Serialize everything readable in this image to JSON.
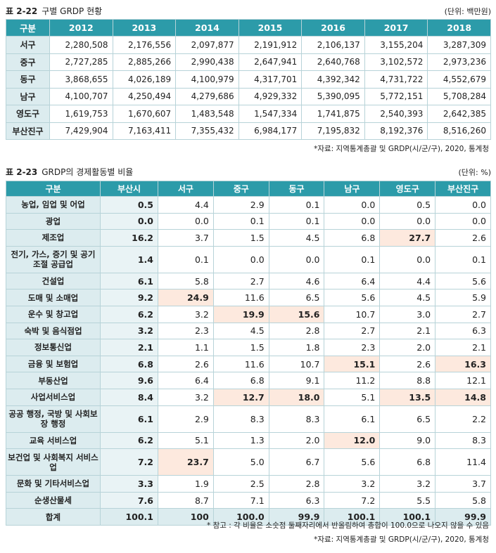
{
  "table1": {
    "number": "표 2-22",
    "title": "구별 GRDP 현황",
    "unit": "(단위: 백만원)",
    "headers": [
      "구분",
      "2012",
      "2013",
      "2014",
      "2015",
      "2016",
      "2017",
      "2018"
    ],
    "rows": [
      [
        "서구",
        "2,280,508",
        "2,176,556",
        "2,097,877",
        "2,191,912",
        "2,106,137",
        "3,155,204",
        "3,287,309"
      ],
      [
        "중구",
        "2,727,285",
        "2,885,266",
        "2,990,438",
        "2,647,941",
        "2,640,768",
        "3,102,572",
        "2,973,236"
      ],
      [
        "동구",
        "3,868,655",
        "4,026,189",
        "4,100,979",
        "4,317,701",
        "4,392,342",
        "4,731,722",
        "4,552,679"
      ],
      [
        "남구",
        "4,100,707",
        "4,250,494",
        "4,279,686",
        "4,929,332",
        "5,390,095",
        "5,772,151",
        "5,708,284"
      ],
      [
        "영도구",
        "1,619,753",
        "1,670,607",
        "1,483,548",
        "1,547,334",
        "1,741,875",
        "2,540,393",
        "2,642,385"
      ],
      [
        "부산진구",
        "7,429,904",
        "7,163,411",
        "7,355,432",
        "6,984,177",
        "7,195,832",
        "8,192,376",
        "8,516,260"
      ]
    ],
    "source": "*자료: 지역통계총괄 및 GRDP(시/군/구), 2020, 통계청"
  },
  "table2": {
    "number": "표 2-23",
    "title": "GRDP의 경제활동별 비율",
    "unit": "(단위: %)",
    "headers": [
      "구분",
      "부산시",
      "서구",
      "중구",
      "동구",
      "남구",
      "영도구",
      "부산진구"
    ],
    "rows": [
      [
        "농업, 임업 및 어업",
        "0.5",
        "4.4",
        "2.9",
        "0.1",
        "0.0",
        "0.5",
        "0.0"
      ],
      [
        "광업",
        "0.0",
        "0.0",
        "0.1",
        "0.1",
        "0.0",
        "0.0",
        "0.0"
      ],
      [
        "제조업",
        "16.2",
        "3.7",
        "1.5",
        "4.5",
        "6.8",
        "27.7",
        "2.6"
      ],
      [
        "전기, 가스, 증기 및 공기 조절 공급업",
        "1.4",
        "0.1",
        "0.0",
        "0.0",
        "0.1",
        "0.0",
        "0.1"
      ],
      [
        "건설업",
        "6.1",
        "5.8",
        "2.7",
        "4.6",
        "6.4",
        "4.4",
        "5.6"
      ],
      [
        "도매 및 소매업",
        "9.2",
        "24.9",
        "11.6",
        "6.5",
        "5.6",
        "4.5",
        "5.9"
      ],
      [
        "운수 및 창고업",
        "6.2",
        "3.2",
        "19.9",
        "15.6",
        "10.7",
        "3.0",
        "2.7"
      ],
      [
        "숙박 및 음식점업",
        "3.2",
        "2.3",
        "4.5",
        "2.8",
        "2.7",
        "2.1",
        "6.3"
      ],
      [
        "정보통신업",
        "2.1",
        "1.1",
        "1.5",
        "1.8",
        "2.3",
        "2.0",
        "2.1"
      ],
      [
        "금융 및 보험업",
        "6.8",
        "2.6",
        "11.6",
        "10.7",
        "15.1",
        "2.6",
        "16.3"
      ],
      [
        "부동산업",
        "9.6",
        "6.4",
        "6.8",
        "9.1",
        "11.2",
        "8.8",
        "12.1"
      ],
      [
        "사업서비스업",
        "8.4",
        "3.2",
        "12.7",
        "18.0",
        "5.1",
        "13.5",
        "14.8"
      ],
      [
        "공공 행정, 국방 및 사회보장 행정",
        "6.1",
        "2.9",
        "8.3",
        "8.3",
        "6.1",
        "6.5",
        "2.2"
      ],
      [
        "교육 서비스업",
        "6.2",
        "5.1",
        "1.3",
        "2.0",
        "12.0",
        "9.0",
        "8.3"
      ],
      [
        "보건업 및 사회복지 서비스업",
        "7.2",
        "23.7",
        "5.0",
        "6.7",
        "5.6",
        "6.8",
        "11.4"
      ],
      [
        "문화 및 기타서비스업",
        "3.3",
        "1.9",
        "2.5",
        "2.8",
        "3.2",
        "3.2",
        "3.7"
      ],
      [
        "순생산물세",
        "7.6",
        "8.7",
        "7.1",
        "6.3",
        "7.2",
        "5.5",
        "5.8"
      ],
      [
        "합계",
        "100.1",
        "100",
        "100.0",
        "99.9",
        "100.1",
        "100.1",
        "99.9"
      ]
    ],
    "highlights": [
      [
        2,
        6
      ],
      [
        5,
        2
      ],
      [
        6,
        3
      ],
      [
        6,
        4
      ],
      [
        9,
        5
      ],
      [
        9,
        7
      ],
      [
        11,
        3
      ],
      [
        11,
        4
      ],
      [
        11,
        6
      ],
      [
        11,
        7
      ],
      [
        13,
        5
      ],
      [
        14,
        2
      ]
    ],
    "note": "* 참고 : 각 비율은 소숫점 둘째자리에서 반올림하여 총합이 100.0으로 나오지 않을 수 있음",
    "source": "*자료: 지역통계총괄 및 GRDP(시/군/구), 2020, 통계청"
  }
}
